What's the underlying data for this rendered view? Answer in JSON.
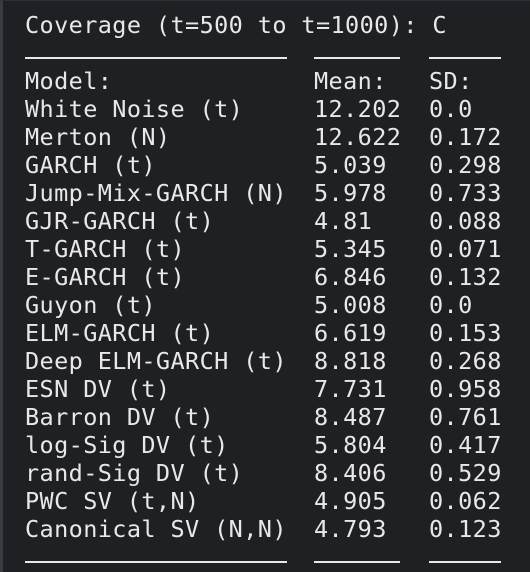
{
  "title": "Coverage (t=500 to t=1000): C",
  "columns": {
    "model": "Model:",
    "mean": "Mean:",
    "sd": "SD:"
  },
  "rows": [
    {
      "model": "White Noise (t)",
      "mean": "12.202",
      "sd": "0.0"
    },
    {
      "model": "Merton (N)",
      "mean": "12.622",
      "sd": "0.172"
    },
    {
      "model": "GARCH (t)",
      "mean": "5.039",
      "sd": "0.298"
    },
    {
      "model": "Jump-Mix-GARCH (N)",
      "mean": "5.978",
      "sd": "0.733"
    },
    {
      "model": "GJR-GARCH (t)",
      "mean": "4.81",
      "sd": "0.088"
    },
    {
      "model": "T-GARCH (t)",
      "mean": "5.345",
      "sd": "0.071"
    },
    {
      "model": "E-GARCH (t)",
      "mean": "6.846",
      "sd": "0.132"
    },
    {
      "model": "Guyon (t)",
      "mean": "5.008",
      "sd": "0.0"
    },
    {
      "model": "ELM-GARCH (t)",
      "mean": "6.619",
      "sd": "0.153"
    },
    {
      "model": "Deep ELM-GARCH (t)",
      "mean": "8.818",
      "sd": "0.268"
    },
    {
      "model": "ESN DV (t)",
      "mean": "7.731",
      "sd": "0.958"
    },
    {
      "model": "Barron DV (t)",
      "mean": "8.487",
      "sd": "0.761"
    },
    {
      "model": "log-Sig DV (t)",
      "mean": "5.804",
      "sd": "0.417"
    },
    {
      "model": "rand-Sig DV (t)",
      "mean": "8.406",
      "sd": "0.529"
    },
    {
      "model": "PWC SV (t,N)",
      "mean": "4.905",
      "sd": "0.062"
    },
    {
      "model": "Canonical SV (N,N)",
      "mean": "4.793",
      "sd": "0.123"
    }
  ],
  "colors": {
    "background": "#1f2024",
    "text": "#e8e8e8"
  }
}
